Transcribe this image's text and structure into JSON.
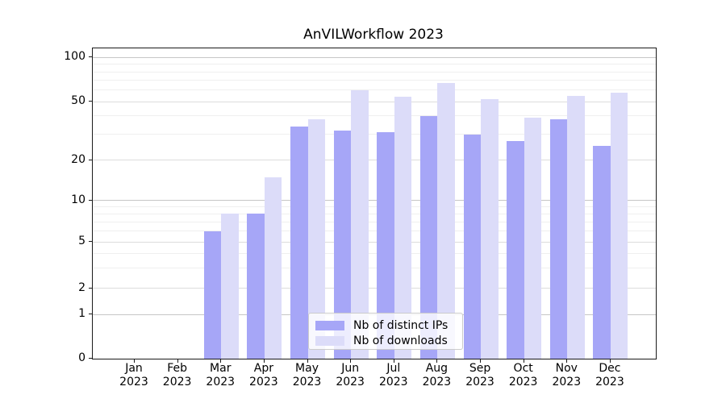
{
  "page": {
    "background": "#ffffff"
  },
  "chart_data": {
    "type": "bar",
    "title": "AnVILWorkflow 2023",
    "categories": [
      "Jan 2023",
      "Feb 2023",
      "Mar 2023",
      "Apr 2023",
      "May 2023",
      "Jun 2023",
      "Jul 2023",
      "Aug 2023",
      "Sep 2023",
      "Oct 2023",
      "Nov 2023",
      "Dec 2023"
    ],
    "series": [
      {
        "name": "Nb of distinct IPs",
        "color": "#a6a6f7",
        "values": [
          0,
          0,
          6,
          8,
          34,
          32,
          31,
          40,
          30,
          27,
          38,
          25
        ]
      },
      {
        "name": "Nb of downloads",
        "color": "#dcdcf9",
        "values": [
          0,
          0,
          8,
          15,
          38,
          60,
          54,
          67,
          52,
          39,
          55,
          58
        ]
      }
    ],
    "xlabel": "",
    "ylabel": "",
    "yscale": "symlog",
    "yticks": [
      0,
      1,
      2,
      5,
      10,
      20,
      50,
      100
    ],
    "minor_yticks": [
      3,
      4,
      6,
      7,
      8,
      9,
      30,
      40,
      60,
      70,
      80,
      90
    ],
    "ylim": [
      0,
      116
    ],
    "grid": true,
    "legend_position": "lower center"
  },
  "colors": {
    "grid_major": "#dcdcdc",
    "grid_decade": "#c6c6c6",
    "grid_minor": "#efefef",
    "spine": "#1a1a1a"
  }
}
